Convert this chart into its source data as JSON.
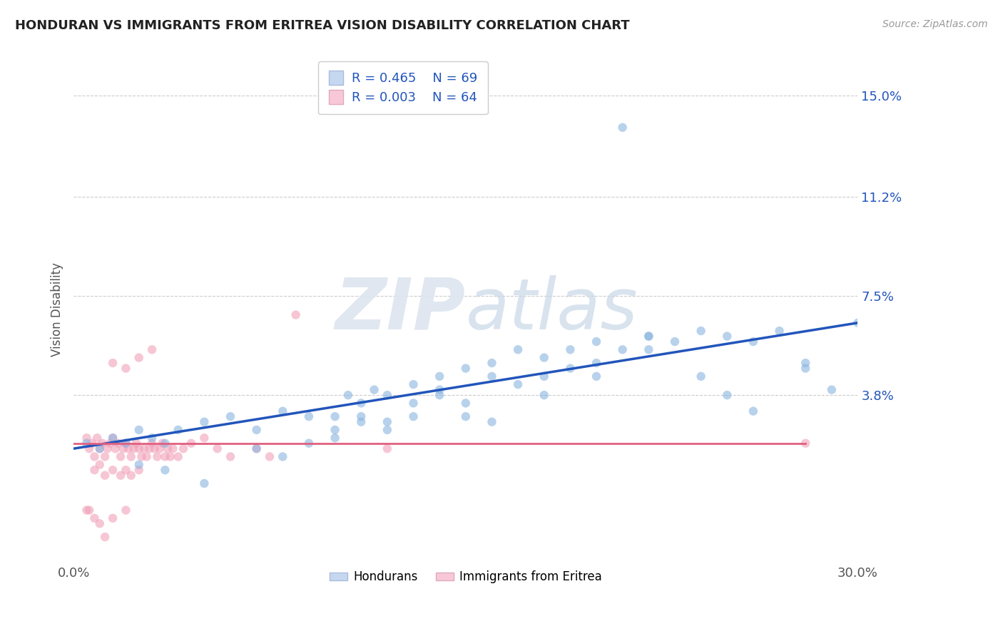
{
  "title": "HONDURAN VS IMMIGRANTS FROM ERITREA VISION DISABILITY CORRELATION CHART",
  "source": "Source: ZipAtlas.com",
  "ylabel": "Vision Disability",
  "xlim": [
    0.0,
    0.3
  ],
  "ylim": [
    -0.025,
    0.165
  ],
  "yticks": [
    0.038,
    0.075,
    0.112,
    0.15
  ],
  "ytick_labels": [
    "3.8%",
    "7.5%",
    "11.2%",
    "15.0%"
  ],
  "xticks": [
    0.0,
    0.3
  ],
  "xtick_labels": [
    "0.0%",
    "30.0%"
  ],
  "legend_r1": "R = 0.465",
  "legend_n1": "N = 69",
  "legend_r2": "R = 0.003",
  "legend_n2": "N = 64",
  "blue_color": "#8ab4e0",
  "pink_color": "#f0a0b8",
  "blue_fill": "#c5d8f0",
  "pink_fill": "#f8c8d8",
  "trend_blue": "#2255bb",
  "trend_pink": "#e06080",
  "grid_color": "#cccccc",
  "title_color": "#222222",
  "blue_scatter_x": [
    0.21,
    0.005,
    0.01,
    0.015,
    0.02,
    0.025,
    0.03,
    0.035,
    0.04,
    0.05,
    0.06,
    0.07,
    0.08,
    0.09,
    0.1,
    0.105,
    0.11,
    0.115,
    0.12,
    0.13,
    0.14,
    0.15,
    0.16,
    0.17,
    0.18,
    0.19,
    0.2,
    0.21,
    0.22,
    0.23,
    0.24,
    0.25,
    0.26,
    0.27,
    0.28,
    0.29,
    0.1,
    0.11,
    0.12,
    0.13,
    0.14,
    0.15,
    0.16,
    0.17,
    0.18,
    0.19,
    0.2,
    0.22,
    0.24,
    0.25,
    0.26,
    0.28,
    0.3,
    0.07,
    0.08,
    0.09,
    0.1,
    0.11,
    0.12,
    0.13,
    0.14,
    0.15,
    0.22,
    0.16,
    0.18,
    0.2,
    0.025,
    0.035,
    0.05
  ],
  "blue_scatter_y": [
    0.138,
    0.02,
    0.018,
    0.022,
    0.02,
    0.025,
    0.022,
    0.02,
    0.025,
    0.028,
    0.03,
    0.025,
    0.032,
    0.03,
    0.025,
    0.038,
    0.035,
    0.04,
    0.038,
    0.042,
    0.04,
    0.048,
    0.05,
    0.055,
    0.052,
    0.055,
    0.058,
    0.055,
    0.06,
    0.058,
    0.062,
    0.06,
    0.058,
    0.062,
    0.05,
    0.04,
    0.03,
    0.028,
    0.025,
    0.035,
    0.045,
    0.035,
    0.045,
    0.042,
    0.045,
    0.048,
    0.05,
    0.055,
    0.045,
    0.038,
    0.032,
    0.048,
    0.065,
    0.018,
    0.015,
    0.02,
    0.022,
    0.03,
    0.028,
    0.03,
    0.038,
    0.03,
    0.06,
    0.028,
    0.038,
    0.045,
    0.012,
    0.01,
    0.005
  ],
  "pink_scatter_x": [
    0.005,
    0.006,
    0.007,
    0.008,
    0.009,
    0.01,
    0.011,
    0.012,
    0.013,
    0.014,
    0.015,
    0.016,
    0.017,
    0.018,
    0.019,
    0.02,
    0.021,
    0.022,
    0.023,
    0.024,
    0.025,
    0.026,
    0.027,
    0.028,
    0.029,
    0.03,
    0.031,
    0.032,
    0.033,
    0.034,
    0.035,
    0.036,
    0.037,
    0.038,
    0.04,
    0.042,
    0.045,
    0.05,
    0.055,
    0.06,
    0.07,
    0.075,
    0.008,
    0.01,
    0.012,
    0.015,
    0.018,
    0.02,
    0.022,
    0.025,
    0.015,
    0.02,
    0.025,
    0.03,
    0.085,
    0.12,
    0.28,
    0.005,
    0.006,
    0.008,
    0.01,
    0.012,
    0.015,
    0.02
  ],
  "pink_scatter_y": [
    0.022,
    0.018,
    0.02,
    0.015,
    0.022,
    0.018,
    0.02,
    0.015,
    0.018,
    0.02,
    0.022,
    0.018,
    0.02,
    0.015,
    0.018,
    0.02,
    0.018,
    0.015,
    0.018,
    0.02,
    0.018,
    0.015,
    0.018,
    0.015,
    0.018,
    0.02,
    0.018,
    0.015,
    0.018,
    0.02,
    0.015,
    0.018,
    0.015,
    0.018,
    0.015,
    0.018,
    0.02,
    0.022,
    0.018,
    0.015,
    0.018,
    0.015,
    0.01,
    0.012,
    0.008,
    0.01,
    0.008,
    0.01,
    0.008,
    0.01,
    0.05,
    0.048,
    0.052,
    0.055,
    0.068,
    0.018,
    0.02,
    -0.005,
    -0.005,
    -0.008,
    -0.01,
    -0.015,
    -0.008,
    -0.005
  ],
  "blue_trend_x": [
    0.0,
    0.3
  ],
  "blue_trend_y": [
    0.018,
    0.065
  ],
  "pink_trend_x": [
    0.0,
    0.28
  ],
  "pink_trend_y": [
    0.02,
    0.02
  ]
}
